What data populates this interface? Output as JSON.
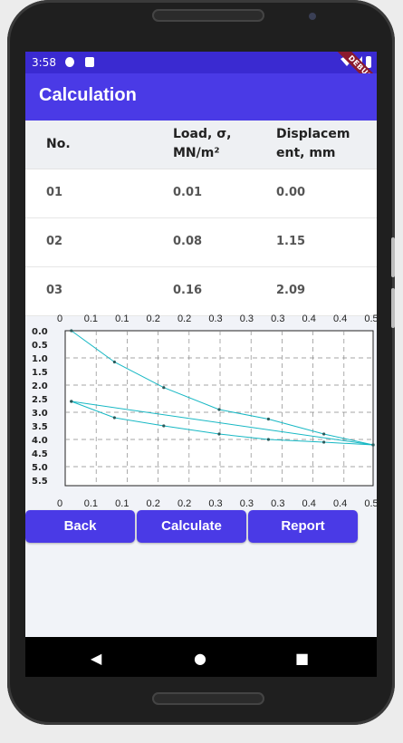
{
  "status": {
    "time": "3:58",
    "debug_label": "DEBUG"
  },
  "appbar": {
    "title": "Calculation"
  },
  "table": {
    "headers": [
      "No.",
      "Load, σ, MN/m²",
      "Displacement, mm"
    ],
    "header_lines": [
      [
        "No."
      ],
      [
        "Load, σ,",
        "MN/m²"
      ],
      [
        "Displacem",
        "ent, mm"
      ]
    ],
    "rows": [
      [
        "01",
        "0.01",
        "0.00"
      ],
      [
        "02",
        "0.08",
        "1.15"
      ],
      [
        "03",
        "0.16",
        "2.09"
      ]
    ]
  },
  "chart_data": {
    "type": "line",
    "x_tick_labels": [
      "0",
      "0.1",
      "0.1",
      "0.2",
      "0.2",
      "0.3",
      "0.3",
      "0.3",
      "0.4",
      "0.4",
      "0.5"
    ],
    "y_tick_labels": [
      "0.0",
      "0.5",
      "1.0",
      "1.5",
      "2.0",
      "2.5",
      "3.0",
      "3.5",
      "4.0",
      "4.5",
      "5.0",
      "5.5"
    ],
    "xlim": [
      0,
      0.5
    ],
    "ylim": [
      0,
      5.5
    ],
    "y_inverted": true,
    "grid": true,
    "line_color": "#17b8c4",
    "series": [
      {
        "x": [
          0.01,
          0.08,
          0.16,
          0.25,
          0.33,
          0.42,
          0.5
        ],
        "y": [
          0.0,
          1.15,
          2.09,
          2.9,
          3.25,
          3.8,
          4.2
        ]
      },
      {
        "x": [
          0.5,
          0.42,
          0.33,
          0.25,
          0.16,
          0.08,
          0.01
        ],
        "y": [
          4.2,
          4.1,
          4.0,
          3.8,
          3.5,
          3.2,
          2.6
        ]
      },
      {
        "x": [
          0.01,
          0.5
        ],
        "y": [
          2.6,
          4.2
        ]
      }
    ]
  },
  "buttons": {
    "back": "Back",
    "calculate": "Calculate",
    "report": "Report"
  },
  "navbar": {
    "back_icon": "◀",
    "home_icon": "●",
    "recents_icon": "■"
  },
  "colors": {
    "primary": "#4a3ae6",
    "statusbar": "#3a2ad1"
  }
}
